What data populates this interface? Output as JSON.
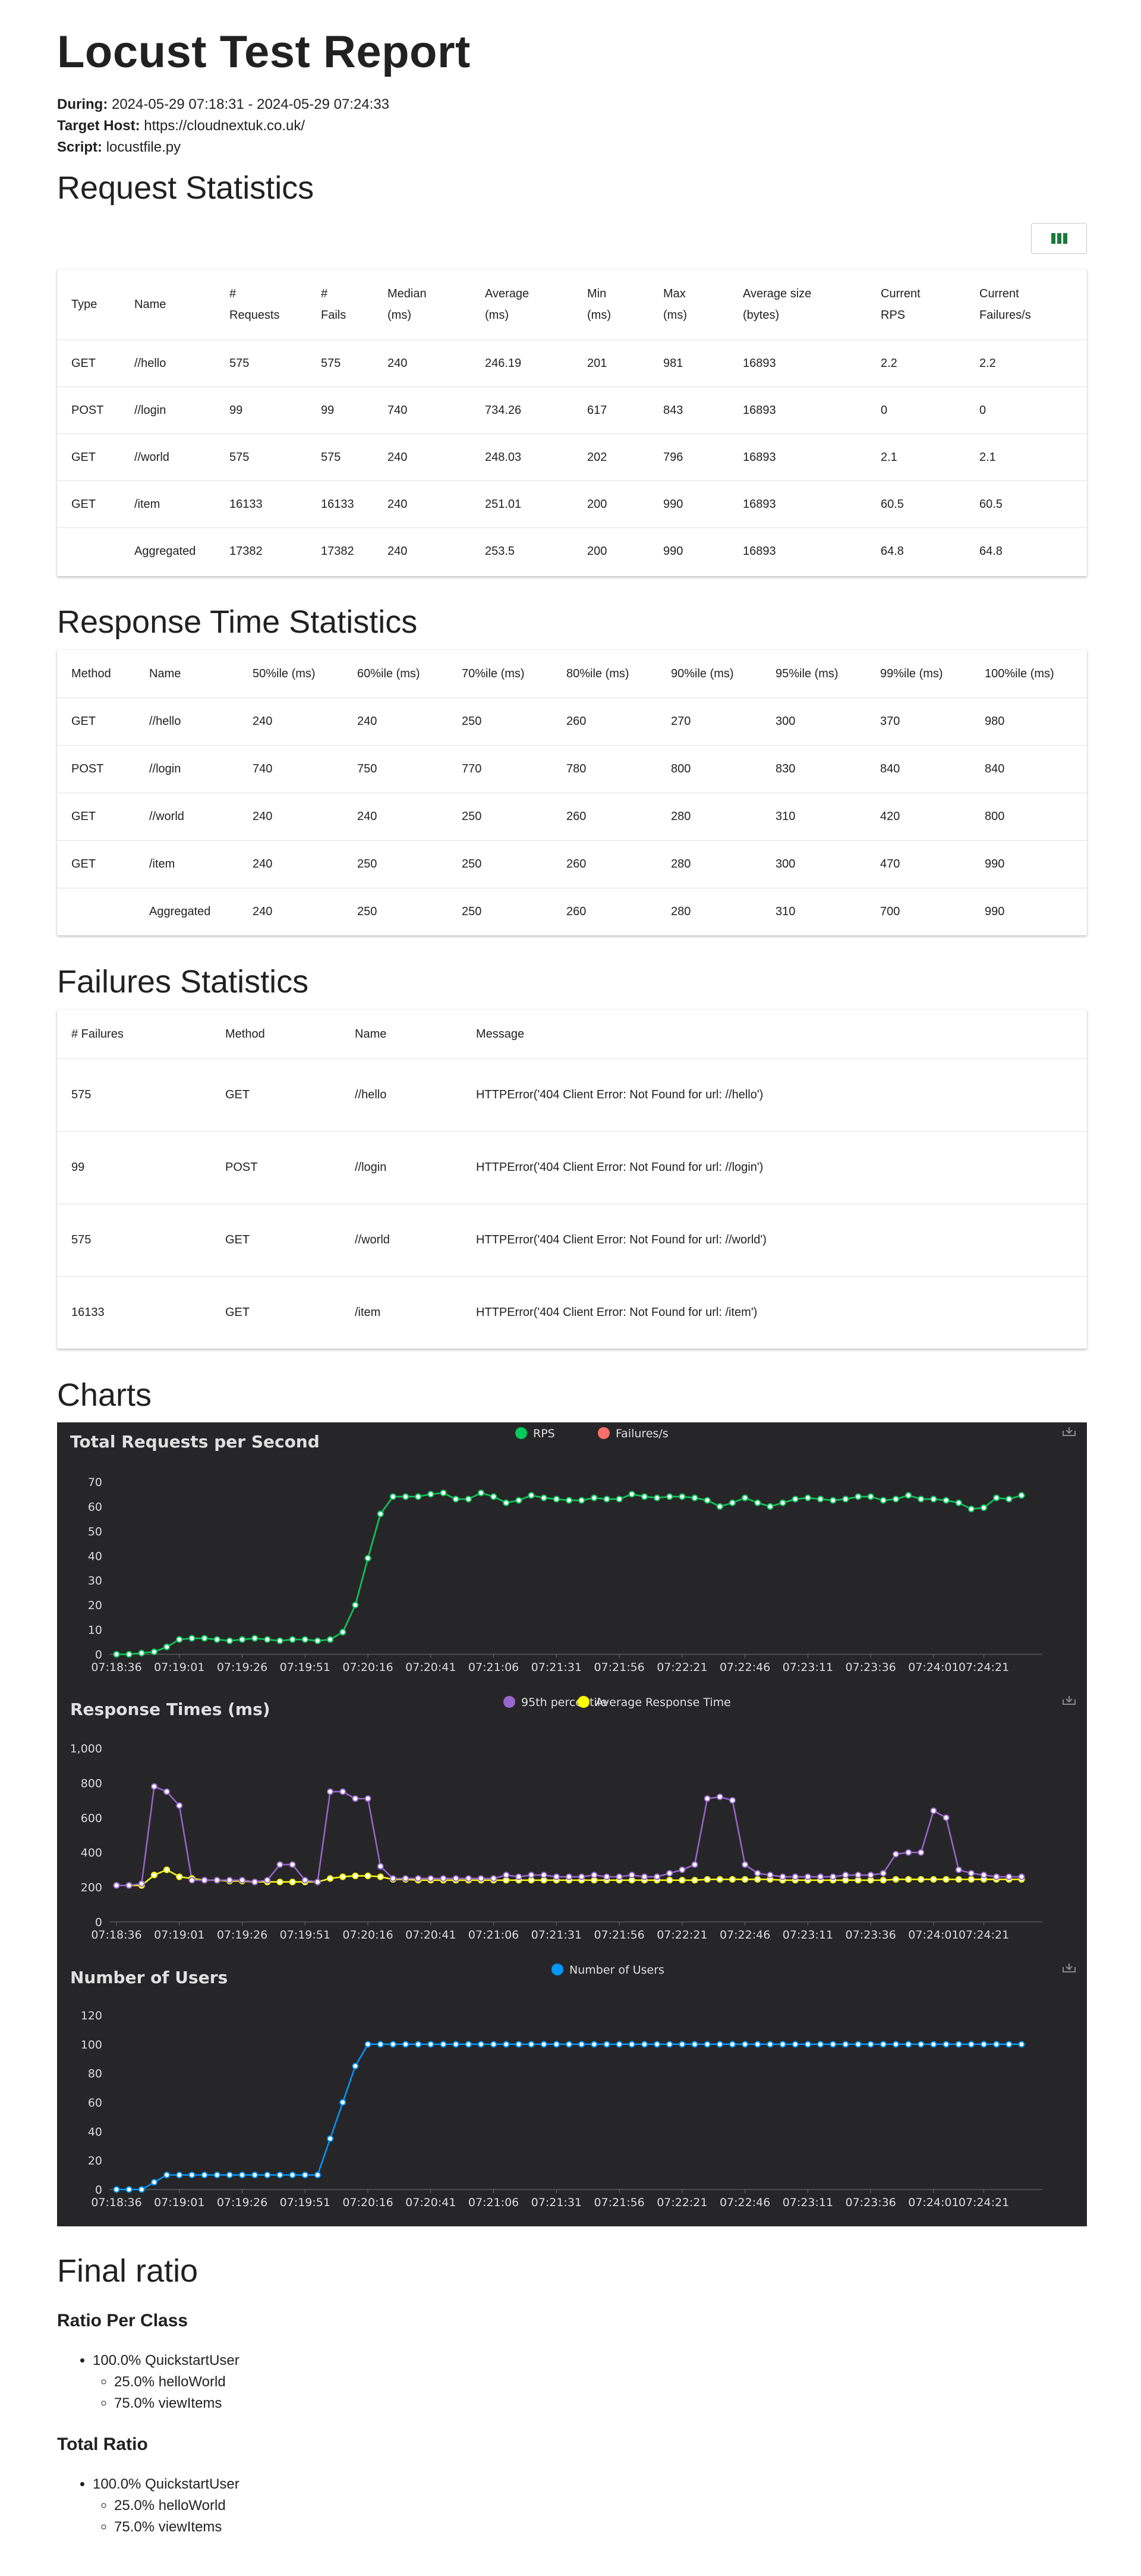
{
  "report": {
    "title": "Locust Test Report",
    "during_label": "During:",
    "during_value": "2024-05-29 07:18:31 - 2024-05-29 07:24:33",
    "host_label": "Target Host:",
    "host_value": "https://cloudnextuk.co.uk/",
    "script_label": "Script:",
    "script_value": "locustfile.py"
  },
  "request_stats": {
    "heading": "Request Statistics",
    "headers": [
      [
        "Type"
      ],
      [
        "Name"
      ],
      [
        "#",
        "Requests"
      ],
      [
        "#",
        "Fails"
      ],
      [
        "Median",
        "(ms)"
      ],
      [
        "Average",
        "(ms)"
      ],
      [
        "Min",
        "(ms)"
      ],
      [
        "Max",
        "(ms)"
      ],
      [
        "Average size",
        "(bytes)"
      ],
      [
        "Current",
        "RPS"
      ],
      [
        "Current",
        "Failures/s"
      ]
    ],
    "rows": [
      [
        "GET",
        "//hello",
        "575",
        "575",
        "240",
        "246.19",
        "201",
        "981",
        "16893",
        "2.2",
        "2.2"
      ],
      [
        "POST",
        "//login",
        "99",
        "99",
        "740",
        "734.26",
        "617",
        "843",
        "16893",
        "0",
        "0"
      ],
      [
        "GET",
        "//world",
        "575",
        "575",
        "240",
        "248.03",
        "202",
        "796",
        "16893",
        "2.1",
        "2.1"
      ],
      [
        "GET",
        "/item",
        "16133",
        "16133",
        "240",
        "251.01",
        "200",
        "990",
        "16893",
        "60.5",
        "60.5"
      ],
      [
        "",
        "Aggregated",
        "17382",
        "17382",
        "240",
        "253.5",
        "200",
        "990",
        "16893",
        "64.8",
        "64.8"
      ]
    ]
  },
  "response_stats": {
    "heading": "Response Time Statistics",
    "headers": [
      "Method",
      "Name",
      "50%ile (ms)",
      "60%ile (ms)",
      "70%ile (ms)",
      "80%ile (ms)",
      "90%ile (ms)",
      "95%ile (ms)",
      "99%ile (ms)",
      "100%ile (ms)"
    ],
    "rows": [
      [
        "GET",
        "//hello",
        "240",
        "240",
        "250",
        "260",
        "270",
        "300",
        "370",
        "980"
      ],
      [
        "POST",
        "//login",
        "740",
        "750",
        "770",
        "780",
        "800",
        "830",
        "840",
        "840"
      ],
      [
        "GET",
        "//world",
        "240",
        "240",
        "250",
        "260",
        "280",
        "310",
        "420",
        "800"
      ],
      [
        "GET",
        "/item",
        "240",
        "250",
        "250",
        "260",
        "280",
        "300",
        "470",
        "990"
      ],
      [
        "",
        "Aggregated",
        "240",
        "250",
        "250",
        "260",
        "280",
        "310",
        "700",
        "990"
      ]
    ]
  },
  "failure_stats": {
    "heading": "Failures Statistics",
    "headers": [
      "# Failures",
      "Method",
      "Name",
      "Message"
    ],
    "rows": [
      [
        "575",
        "GET",
        "//hello",
        "HTTPError('404 Client Error: Not Found for url: //hello')"
      ],
      [
        "99",
        "POST",
        "//login",
        "HTTPError('404 Client Error: Not Found for url: //login')"
      ],
      [
        "575",
        "GET",
        "//world",
        "HTTPError('404 Client Error: Not Found for url: //world')"
      ],
      [
        "16133",
        "GET",
        "/item",
        "HTTPError('404 Client Error: Not Found for url: /item')"
      ]
    ]
  },
  "charts_heading": "Charts",
  "colors": {
    "rps": "#00ca5a",
    "failures": "#ff6d6d",
    "p95": "#9966cc",
    "avg": "#ffff00",
    "users": "#0098ff",
    "chart_bg": "#262628",
    "axis_text": "#dcdcdc"
  },
  "chart_data": [
    {
      "type": "line",
      "title": "Total Requests per Second",
      "legend": [
        "RPS",
        "Failures/s"
      ],
      "legend_position": "top-center",
      "tick_labels": [
        "07:18:36",
        "07:19:01",
        "07:19:26",
        "07:19:51",
        "07:20:16",
        "07:20:41",
        "07:21:06",
        "07:21:31",
        "07:21:56",
        "07:22:21",
        "07:22:46",
        "07:23:11",
        "07:23:36",
        "07:24:01",
        "07:24:21"
      ],
      "ylim": [
        0,
        70
      ],
      "yticks": [
        0,
        10,
        20,
        30,
        40,
        50,
        60,
        70
      ],
      "series": [
        {
          "name": "RPS",
          "values": [
            0,
            0,
            0.5,
            1,
            3,
            6,
            6.5,
            6.5,
            6,
            5.5,
            6,
            6.5,
            6,
            5.5,
            6,
            6,
            5.5,
            6,
            9,
            20,
            39,
            57,
            64,
            64,
            64,
            65,
            65.5,
            63,
            63,
            65.5,
            64,
            61.5,
            62.5,
            64.5,
            63.5,
            63,
            62.5,
            62.5,
            63.5,
            63,
            63,
            65,
            64,
            63.5,
            64,
            64,
            63.5,
            62.5,
            60,
            61.5,
            63.5,
            61.5,
            60,
            61.5,
            63,
            63.5,
            63,
            62.5,
            63,
            64,
            64,
            62.5,
            63,
            64.5,
            63,
            63,
            62.5,
            61.5,
            59,
            59.5,
            63.5,
            63,
            64.5
          ]
        },
        {
          "name": "Failures/s",
          "values": [
            0,
            0,
            0.5,
            1,
            3,
            6,
            6.5,
            6.5,
            6,
            5.5,
            6,
            6.5,
            6,
            5.5,
            6,
            6,
            5.5,
            6,
            9,
            20,
            39,
            57,
            64,
            64,
            64,
            65,
            65.5,
            63,
            63,
            65.5,
            64,
            61.5,
            62.5,
            64.5,
            63.5,
            63,
            62.5,
            62.5,
            63.5,
            63,
            63,
            65,
            64,
            63.5,
            64,
            64,
            63.5,
            62.5,
            60,
            61.5,
            63.5,
            61.5,
            60,
            61.5,
            63,
            63.5,
            63,
            62.5,
            63,
            64,
            64,
            62.5,
            63,
            64.5,
            63,
            63,
            62.5,
            61.5,
            59,
            59.5,
            63.5,
            63,
            64.5
          ]
        }
      ]
    },
    {
      "type": "line",
      "title": "Response Times (ms)",
      "legend": [
        "95th percentile",
        "Average Response Time"
      ],
      "legend_position": "top-center",
      "tick_labels": [
        "07:18:36",
        "07:19:01",
        "07:19:26",
        "07:19:51",
        "07:20:16",
        "07:20:41",
        "07:21:06",
        "07:21:31",
        "07:21:56",
        "07:22:21",
        "07:22:46",
        "07:23:11",
        "07:23:36",
        "07:24:01",
        "07:24:21"
      ],
      "ytick_labels": [
        "0",
        "200",
        "400",
        "600",
        "800",
        "1,000"
      ],
      "ylim": [
        0,
        1000
      ],
      "series": [
        {
          "name": "95th percentile",
          "values": [
            210,
            210,
            220,
            780,
            750,
            670,
            240,
            240,
            240,
            240,
            240,
            230,
            240,
            330,
            330,
            240,
            230,
            750,
            750,
            710,
            710,
            320,
            250,
            250,
            250,
            250,
            250,
            250,
            250,
            250,
            250,
            270,
            260,
            270,
            270,
            260,
            260,
            260,
            270,
            260,
            260,
            270,
            260,
            260,
            280,
            300,
            330,
            710,
            720,
            700,
            330,
            280,
            270,
            260,
            260,
            260,
            260,
            260,
            270,
            270,
            270,
            280,
            390,
            400,
            400,
            640,
            600,
            300,
            280,
            270,
            260,
            260,
            260
          ]
        },
        {
          "name": "Average Response Time",
          "values": [
            210,
            210,
            210,
            270,
            300,
            260,
            250,
            240,
            240,
            235,
            235,
            230,
            230,
            230,
            230,
            230,
            230,
            250,
            260,
            265,
            265,
            260,
            245,
            245,
            240,
            240,
            240,
            240,
            240,
            240,
            240,
            240,
            240,
            240,
            240,
            240,
            240,
            240,
            240,
            240,
            240,
            240,
            240,
            240,
            240,
            240,
            240,
            245,
            245,
            245,
            245,
            245,
            245,
            240,
            240,
            240,
            240,
            240,
            240,
            240,
            240,
            240,
            245,
            245,
            245,
            245,
            245,
            245,
            245,
            245,
            245,
            245,
            245
          ]
        }
      ]
    },
    {
      "type": "line",
      "title": "Number of Users",
      "legend": [
        "Number of Users"
      ],
      "legend_position": "top-center",
      "tick_labels": [
        "07:18:36",
        "07:19:01",
        "07:19:26",
        "07:19:51",
        "07:20:16",
        "07:20:41",
        "07:21:06",
        "07:21:31",
        "07:21:56",
        "07:22:21",
        "07:22:46",
        "07:23:11",
        "07:23:36",
        "07:24:01",
        "07:24:21"
      ],
      "ylim": [
        0,
        120
      ],
      "yticks": [
        0,
        20,
        40,
        60,
        80,
        100,
        120
      ],
      "series": [
        {
          "name": "Number of Users",
          "values": [
            0,
            0,
            0,
            5,
            10,
            10,
            10,
            10,
            10,
            10,
            10,
            10,
            10,
            10,
            10,
            10,
            10,
            35,
            60,
            85,
            100,
            100,
            100,
            100,
            100,
            100,
            100,
            100,
            100,
            100,
            100,
            100,
            100,
            100,
            100,
            100,
            100,
            100,
            100,
            100,
            100,
            100,
            100,
            100,
            100,
            100,
            100,
            100,
            100,
            100,
            100,
            100,
            100,
            100,
            100,
            100,
            100,
            100,
            100,
            100,
            100,
            100,
            100,
            100,
            100,
            100,
            100,
            100,
            100,
            100,
            100,
            100,
            100
          ]
        }
      ]
    }
  ],
  "final_ratio": {
    "heading": "Final ratio",
    "per_class_heading": "Ratio Per Class",
    "total_heading": "Total Ratio",
    "user_class": "100.0% QuickstartUser",
    "tasks": [
      "25.0% helloWorld",
      "75.0% viewItems"
    ]
  }
}
